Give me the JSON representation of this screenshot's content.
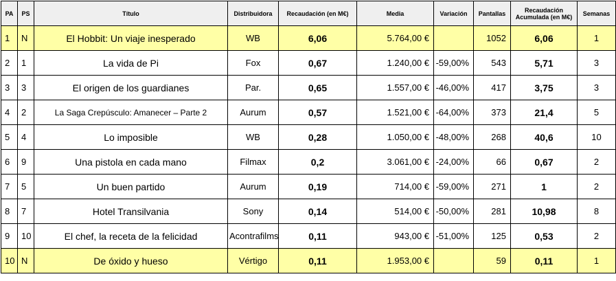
{
  "headers": {
    "pa": "PA",
    "ps": "PS",
    "titulo": "Título",
    "distribuidora": "Distribuidora",
    "recaudacion": "Recaudación (en M€)",
    "media": "Media",
    "variacion": "Variación",
    "pantallas": "Pantallas",
    "acumulada": "Recaudación Acumulada (en M€)",
    "semanas": "Semanas"
  },
  "rows": [
    {
      "pa": "1",
      "ps": "N",
      "titulo": "El Hobbit: Un viaje inesperado",
      "distribuidora": "WB",
      "recaudacion": "6,06",
      "media": "5.764,00 €",
      "variacion": "",
      "pantallas": "1052",
      "acumulada": "6,06",
      "semanas": "1",
      "highlight": true
    },
    {
      "pa": "2",
      "ps": "1",
      "titulo": "La vida de Pi",
      "distribuidora": "Fox",
      "recaudacion": "0,67",
      "media": "1.240,00 €",
      "variacion": "-59,00%",
      "pantallas": "543",
      "acumulada": "5,71",
      "semanas": "3",
      "highlight": false
    },
    {
      "pa": "3",
      "ps": "3",
      "titulo": "El origen de los guardianes",
      "distribuidora": "Par.",
      "recaudacion": "0,65",
      "media": "1.557,00 €",
      "variacion": "-46,00%",
      "pantallas": "417",
      "acumulada": "3,75",
      "semanas": "3",
      "highlight": false
    },
    {
      "pa": "4",
      "ps": "2",
      "titulo": "La Saga Crepúsculo: Amanecer – Parte 2",
      "distribuidora": "Aurum",
      "recaudacion": "0,57",
      "media": "1.521,00 €",
      "variacion": "-64,00%",
      "pantallas": "373",
      "acumulada": "21,4",
      "semanas": "5",
      "highlight": false,
      "small": true
    },
    {
      "pa": "5",
      "ps": "4",
      "titulo": "Lo imposible",
      "distribuidora": "WB",
      "recaudacion": "0,28",
      "media": "1.050,00 €",
      "variacion": "-48,00%",
      "pantallas": "268",
      "acumulada": "40,6",
      "semanas": "10",
      "highlight": false
    },
    {
      "pa": "6",
      "ps": "9",
      "titulo": "Una pistola en cada mano",
      "distribuidora": "Filmax",
      "recaudacion": "0,2",
      "media": "3.061,00 €",
      "variacion": "-24,00%",
      "pantallas": "66",
      "acumulada": "0,67",
      "semanas": "2",
      "highlight": false
    },
    {
      "pa": "7",
      "ps": "5",
      "titulo": "Un buen partido",
      "distribuidora": "Aurum",
      "recaudacion": "0,19",
      "media": "714,00 €",
      "variacion": "-59,00%",
      "pantallas": "271",
      "acumulada": "1",
      "semanas": "2",
      "highlight": false
    },
    {
      "pa": "8",
      "ps": "7",
      "titulo": "Hotel Transilvania",
      "distribuidora": "Sony",
      "recaudacion": "0,14",
      "media": "514,00 €",
      "variacion": "-50,00%",
      "pantallas": "281",
      "acumulada": "10,98",
      "semanas": "8",
      "highlight": false
    },
    {
      "pa": "9",
      "ps": "10",
      "titulo": "El chef, la receta de la felicidad",
      "distribuidora": "Acontrafilms",
      "recaudacion": "0,11",
      "media": "943,00 €",
      "variacion": "-51,00%",
      "pantallas": "125",
      "acumulada": "0,53",
      "semanas": "2",
      "highlight": false
    },
    {
      "pa": "10",
      "ps": "N",
      "titulo": "De óxido y hueso",
      "distribuidora": "Vértigo",
      "recaudacion": "0,11",
      "media": "1.953,00 €",
      "variacion": "",
      "pantallas": "59",
      "acumulada": "0,11",
      "semanas": "1",
      "highlight": true
    }
  ]
}
